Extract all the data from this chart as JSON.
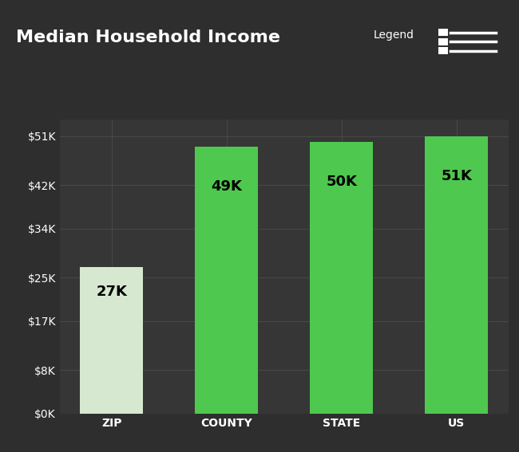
{
  "title": "Median Household Income",
  "legend_text": "Legend",
  "categories": [
    "ZIP",
    "COUNTY",
    "STATE",
    "US"
  ],
  "values": [
    27000,
    49000,
    50000,
    51000
  ],
  "labels": [
    "27K",
    "49K",
    "50K",
    "51K"
  ],
  "bar_colors": [
    "#d6e8d0",
    "#4ec84e",
    "#4ec84e",
    "#4ec84e"
  ],
  "label_colors": [
    "#000000",
    "#000000",
    "#000000",
    "#000000"
  ],
  "background_color": "#2e2e2e",
  "plot_bg_color": "#363636",
  "grid_color": "#484848",
  "text_color": "#ffffff",
  "tick_label_color": "#ffffff",
  "xlabel_color": "#ffffff",
  "ylim": [
    0,
    54000
  ],
  "yticks": [
    0,
    8000,
    17000,
    25000,
    34000,
    42000,
    51000
  ],
  "ytick_labels": [
    "$0K",
    "$8K",
    "$17K",
    "$25K",
    "$34K",
    "$42K",
    "$51K"
  ],
  "title_fontsize": 16,
  "bar_label_fontsize": 13,
  "tick_fontsize": 10,
  "xlabel_fontsize": 10,
  "legend_fontsize": 10
}
